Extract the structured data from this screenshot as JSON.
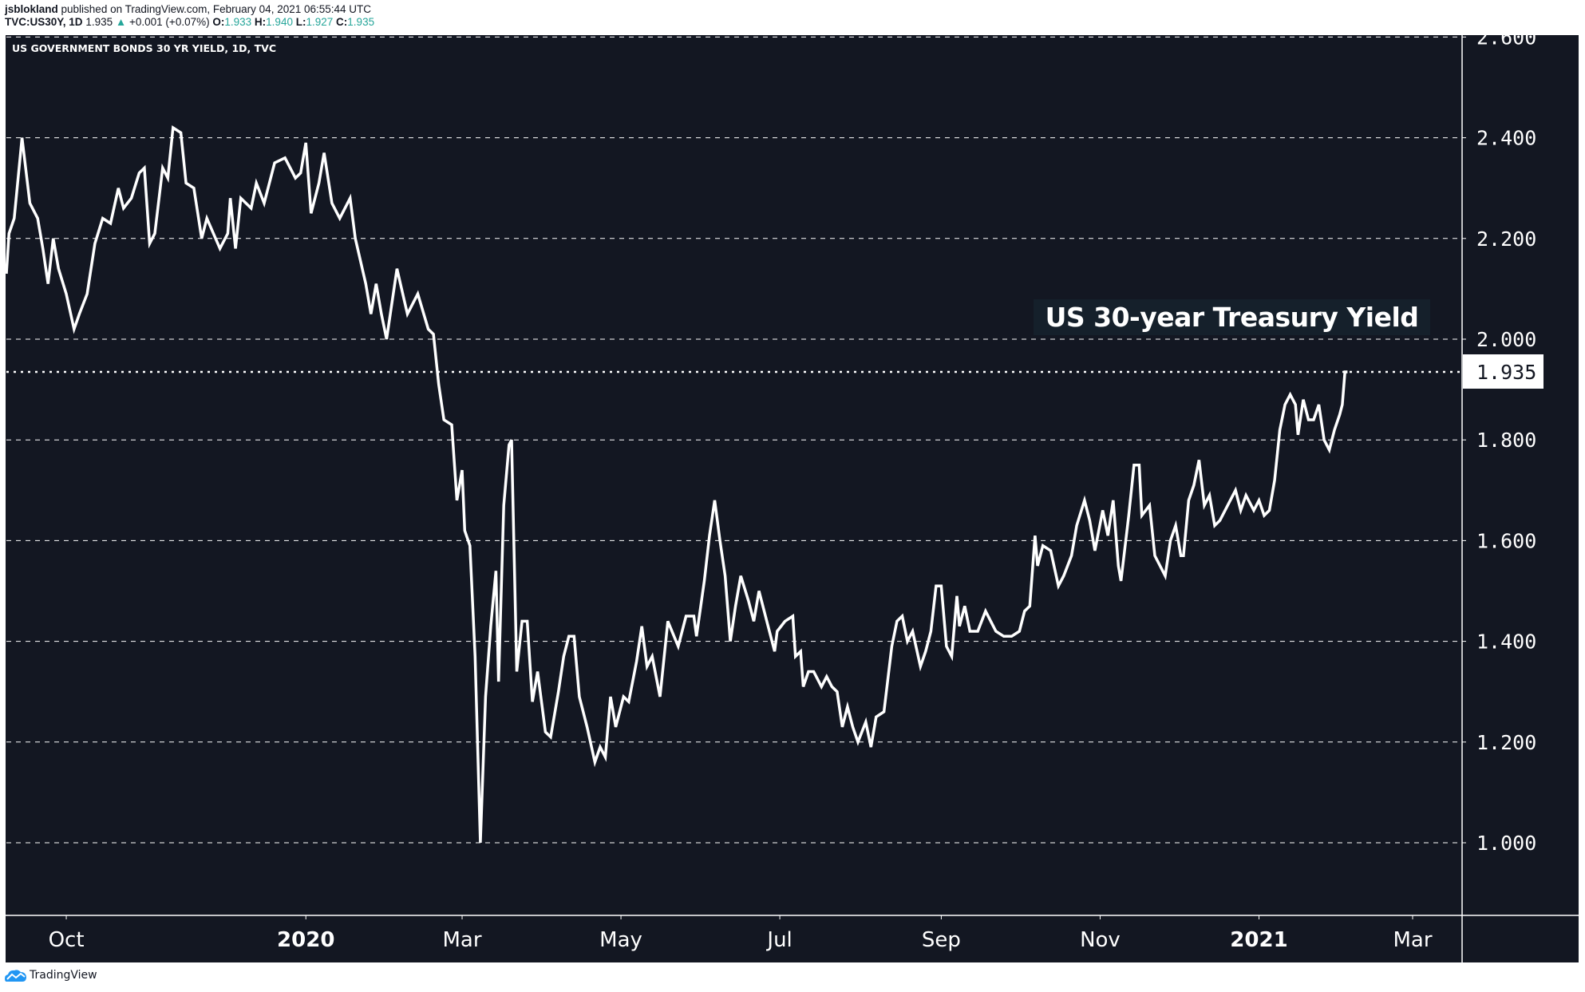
{
  "header": {
    "author": "jsblokland",
    "published": "published on TradingView.com, February 04, 2021 06:55:44 UTC",
    "symbol": "TVC:US30Y, 1D",
    "last": "1.935",
    "change": "+0.001 (+0.07%)",
    "o_label": "O:",
    "o": "1.933",
    "h_label": "H:",
    "h": "1.940",
    "l_label": "L:",
    "l": "1.927",
    "c_label": "C:",
    "c": "1.935",
    "up_icon": "triangle-up-icon"
  },
  "legend": "US GOVERNMENT BONDS 30 YR YIELD, 1D, TVC",
  "annotation": "US 30-year Treasury Yield",
  "footer": {
    "brand": "TradingView"
  },
  "colors": {
    "background": "#131722",
    "line": "#ffffff",
    "accent": "#26a69a",
    "brand": "#2196f3"
  },
  "chart_data": {
    "type": "line",
    "title": "US GOVERNMENT BONDS 30 YR YIELD, 1D, TVC",
    "xlim": [
      "2019-09-08",
      "2021-03-20"
    ],
    "ylim": [
      0.855,
      2.6
    ],
    "grid": true,
    "y_ticks": [
      "2.600",
      "2.400",
      "2.200",
      "2.000",
      "1.800",
      "1.600",
      "1.400",
      "1.200",
      "1.000"
    ],
    "x_ticks": [
      {
        "date": "2019-10-01",
        "label": "Oct",
        "bold": false
      },
      {
        "date": "2020-01-01",
        "label": "2020",
        "bold": true
      },
      {
        "date": "2020-03-01",
        "label": "Mar",
        "bold": false
      },
      {
        "date": "2020-05-01",
        "label": "May",
        "bold": false
      },
      {
        "date": "2020-07-01",
        "label": "Jul",
        "bold": false
      },
      {
        "date": "2020-09-01",
        "label": "Sep",
        "bold": false
      },
      {
        "date": "2020-11-01",
        "label": "Nov",
        "bold": false
      },
      {
        "date": "2021-01-01",
        "label": "2021",
        "bold": true
      },
      {
        "date": "2021-03-01",
        "label": "Mar",
        "bold": false
      }
    ],
    "last_value": 1.935,
    "last_value_label": "1.935",
    "points": [
      [
        "2019-09-08",
        2.13
      ],
      [
        "2019-09-09",
        2.21
      ],
      [
        "2019-09-11",
        2.24
      ],
      [
        "2019-09-14",
        2.4
      ],
      [
        "2019-09-17",
        2.27
      ],
      [
        "2019-09-20",
        2.24
      ],
      [
        "2019-09-22",
        2.18
      ],
      [
        "2019-09-24",
        2.11
      ],
      [
        "2019-09-26",
        2.2
      ],
      [
        "2019-09-28",
        2.14
      ],
      [
        "2019-10-01",
        2.09
      ],
      [
        "2019-10-04",
        2.02
      ],
      [
        "2019-10-06",
        2.05
      ],
      [
        "2019-10-09",
        2.09
      ],
      [
        "2019-10-12",
        2.19
      ],
      [
        "2019-10-15",
        2.24
      ],
      [
        "2019-10-18",
        2.23
      ],
      [
        "2019-10-21",
        2.3
      ],
      [
        "2019-10-23",
        2.26
      ],
      [
        "2019-10-26",
        2.28
      ],
      [
        "2019-10-29",
        2.33
      ],
      [
        "2019-10-31",
        2.34
      ],
      [
        "2019-11-02",
        2.19
      ],
      [
        "2019-11-04",
        2.21
      ],
      [
        "2019-11-07",
        2.34
      ],
      [
        "2019-11-09",
        2.32
      ],
      [
        "2019-11-11",
        2.42
      ],
      [
        "2019-11-14",
        2.41
      ],
      [
        "2019-11-16",
        2.31
      ],
      [
        "2019-11-19",
        2.3
      ],
      [
        "2019-11-22",
        2.2
      ],
      [
        "2019-11-24",
        2.24
      ],
      [
        "2019-11-29",
        2.18
      ],
      [
        "2019-12-02",
        2.21
      ],
      [
        "2019-12-03",
        2.28
      ],
      [
        "2019-12-05",
        2.18
      ],
      [
        "2019-12-07",
        2.28
      ],
      [
        "2019-12-11",
        2.26
      ],
      [
        "2019-12-13",
        2.31
      ],
      [
        "2019-12-16",
        2.27
      ],
      [
        "2019-12-20",
        2.35
      ],
      [
        "2019-12-24",
        2.36
      ],
      [
        "2019-12-28",
        2.32
      ],
      [
        "2019-12-30",
        2.33
      ],
      [
        "2020-01-01",
        2.39
      ],
      [
        "2020-01-03",
        2.25
      ],
      [
        "2020-01-06",
        2.31
      ],
      [
        "2020-01-08",
        2.37
      ],
      [
        "2020-01-11",
        2.27
      ],
      [
        "2020-01-14",
        2.24
      ],
      [
        "2020-01-18",
        2.28
      ],
      [
        "2020-01-20",
        2.2
      ],
      [
        "2020-01-24",
        2.11
      ],
      [
        "2020-01-26",
        2.05
      ],
      [
        "2020-01-28",
        2.11
      ],
      [
        "2020-01-30",
        2.05
      ],
      [
        "2020-02-01",
        2.0
      ],
      [
        "2020-02-05",
        2.14
      ],
      [
        "2020-02-09",
        2.05
      ],
      [
        "2020-02-13",
        2.09
      ],
      [
        "2020-02-17",
        2.02
      ],
      [
        "2020-02-19",
        2.01
      ],
      [
        "2020-02-21",
        1.91
      ],
      [
        "2020-02-23",
        1.84
      ],
      [
        "2020-02-26",
        1.83
      ],
      [
        "2020-02-28",
        1.68
      ],
      [
        "2020-03-01",
        1.74
      ],
      [
        "2020-03-02",
        1.62
      ],
      [
        "2020-03-04",
        1.59
      ],
      [
        "2020-03-06",
        1.37
      ],
      [
        "2020-03-08",
        1.0
      ],
      [
        "2020-03-10",
        1.29
      ],
      [
        "2020-03-12",
        1.43
      ],
      [
        "2020-03-14",
        1.54
      ],
      [
        "2020-03-15",
        1.32
      ],
      [
        "2020-03-17",
        1.67
      ],
      [
        "2020-03-19",
        1.79
      ],
      [
        "2020-03-20",
        1.8
      ],
      [
        "2020-03-22",
        1.34
      ],
      [
        "2020-03-24",
        1.44
      ],
      [
        "2020-03-26",
        1.44
      ],
      [
        "2020-03-28",
        1.28
      ],
      [
        "2020-03-30",
        1.34
      ],
      [
        "2020-04-02",
        1.22
      ],
      [
        "2020-04-04",
        1.21
      ],
      [
        "2020-04-07",
        1.3
      ],
      [
        "2020-04-09",
        1.37
      ],
      [
        "2020-04-11",
        1.41
      ],
      [
        "2020-04-13",
        1.41
      ],
      [
        "2020-04-15",
        1.29
      ],
      [
        "2020-04-18",
        1.23
      ],
      [
        "2020-04-21",
        1.16
      ],
      [
        "2020-04-23",
        1.19
      ],
      [
        "2020-04-25",
        1.17
      ],
      [
        "2020-04-27",
        1.29
      ],
      [
        "2020-04-29",
        1.23
      ],
      [
        "2020-05-02",
        1.29
      ],
      [
        "2020-05-04",
        1.28
      ],
      [
        "2020-05-07",
        1.36
      ],
      [
        "2020-05-09",
        1.43
      ],
      [
        "2020-05-11",
        1.35
      ],
      [
        "2020-05-13",
        1.37
      ],
      [
        "2020-05-16",
        1.29
      ],
      [
        "2020-05-19",
        1.44
      ],
      [
        "2020-05-23",
        1.39
      ],
      [
        "2020-05-26",
        1.45
      ],
      [
        "2020-05-29",
        1.45
      ],
      [
        "2020-05-30",
        1.41
      ],
      [
        "2020-06-02",
        1.52
      ],
      [
        "2020-06-04",
        1.61
      ],
      [
        "2020-06-06",
        1.68
      ],
      [
        "2020-06-08",
        1.6
      ],
      [
        "2020-06-10",
        1.53
      ],
      [
        "2020-06-12",
        1.4
      ],
      [
        "2020-06-14",
        1.47
      ],
      [
        "2020-06-16",
        1.53
      ],
      [
        "2020-06-19",
        1.48
      ],
      [
        "2020-06-21",
        1.44
      ],
      [
        "2020-06-23",
        1.5
      ],
      [
        "2020-06-26",
        1.44
      ],
      [
        "2020-06-29",
        1.38
      ],
      [
        "2020-06-30",
        1.42
      ],
      [
        "2020-07-03",
        1.44
      ],
      [
        "2020-07-06",
        1.45
      ],
      [
        "2020-07-07",
        1.37
      ],
      [
        "2020-07-09",
        1.38
      ],
      [
        "2020-07-10",
        1.31
      ],
      [
        "2020-07-12",
        1.34
      ],
      [
        "2020-07-14",
        1.34
      ],
      [
        "2020-07-17",
        1.31
      ],
      [
        "2020-07-19",
        1.33
      ],
      [
        "2020-07-21",
        1.31
      ],
      [
        "2020-07-23",
        1.3
      ],
      [
        "2020-07-25",
        1.23
      ],
      [
        "2020-07-27",
        1.27
      ],
      [
        "2020-07-29",
        1.23
      ],
      [
        "2020-07-31",
        1.2
      ],
      [
        "2020-08-03",
        1.24
      ],
      [
        "2020-08-05",
        1.19
      ],
      [
        "2020-08-07",
        1.25
      ],
      [
        "2020-08-10",
        1.26
      ],
      [
        "2020-08-13",
        1.39
      ],
      [
        "2020-08-15",
        1.44
      ],
      [
        "2020-08-17",
        1.45
      ],
      [
        "2020-08-19",
        1.4
      ],
      [
        "2020-08-21",
        1.42
      ],
      [
        "2020-08-24",
        1.35
      ],
      [
        "2020-08-26",
        1.38
      ],
      [
        "2020-08-28",
        1.42
      ],
      [
        "2020-08-30",
        1.51
      ],
      [
        "2020-09-01",
        1.51
      ],
      [
        "2020-09-03",
        1.39
      ],
      [
        "2020-09-05",
        1.37
      ],
      [
        "2020-09-07",
        1.49
      ],
      [
        "2020-09-08",
        1.43
      ],
      [
        "2020-09-10",
        1.47
      ],
      [
        "2020-09-12",
        1.42
      ],
      [
        "2020-09-15",
        1.42
      ],
      [
        "2020-09-18",
        1.46
      ],
      [
        "2020-09-20",
        1.44
      ],
      [
        "2020-09-22",
        1.42
      ],
      [
        "2020-09-25",
        1.41
      ],
      [
        "2020-09-28",
        1.41
      ],
      [
        "2020-10-01",
        1.42
      ],
      [
        "2020-10-03",
        1.46
      ],
      [
        "2020-10-05",
        1.47
      ],
      [
        "2020-10-07",
        1.61
      ],
      [
        "2020-10-08",
        1.55
      ],
      [
        "2020-10-10",
        1.59
      ],
      [
        "2020-10-13",
        1.58
      ],
      [
        "2020-10-16",
        1.51
      ],
      [
        "2020-10-18",
        1.53
      ],
      [
        "2020-10-21",
        1.57
      ],
      [
        "2020-10-23",
        1.63
      ],
      [
        "2020-10-26",
        1.68
      ],
      [
        "2020-10-28",
        1.64
      ],
      [
        "2020-10-30",
        1.58
      ],
      [
        "2020-11-02",
        1.66
      ],
      [
        "2020-11-04",
        1.61
      ],
      [
        "2020-11-06",
        1.68
      ],
      [
        "2020-11-08",
        1.55
      ],
      [
        "2020-11-09",
        1.52
      ],
      [
        "2020-11-12",
        1.65
      ],
      [
        "2020-11-14",
        1.75
      ],
      [
        "2020-11-16",
        1.75
      ],
      [
        "2020-11-17",
        1.65
      ],
      [
        "2020-11-20",
        1.67
      ],
      [
        "2020-11-22",
        1.57
      ],
      [
        "2020-11-26",
        1.53
      ],
      [
        "2020-11-28",
        1.6
      ],
      [
        "2020-11-30",
        1.63
      ],
      [
        "2020-12-02",
        1.57
      ],
      [
        "2020-12-03",
        1.57
      ],
      [
        "2020-12-05",
        1.68
      ],
      [
        "2020-12-07",
        1.71
      ],
      [
        "2020-12-09",
        1.76
      ],
      [
        "2020-12-11",
        1.67
      ],
      [
        "2020-12-13",
        1.69
      ],
      [
        "2020-12-15",
        1.63
      ],
      [
        "2020-12-17",
        1.64
      ],
      [
        "2020-12-20",
        1.67
      ],
      [
        "2020-12-23",
        1.7
      ],
      [
        "2020-12-25",
        1.66
      ],
      [
        "2020-12-27",
        1.69
      ],
      [
        "2020-12-30",
        1.66
      ],
      [
        "2021-01-01",
        1.68
      ],
      [
        "2021-01-03",
        1.65
      ],
      [
        "2021-01-05",
        1.66
      ],
      [
        "2021-01-07",
        1.72
      ],
      [
        "2021-01-09",
        1.82
      ],
      [
        "2021-01-11",
        1.87
      ],
      [
        "2021-01-13",
        1.89
      ],
      [
        "2021-01-15",
        1.87
      ],
      [
        "2021-01-16",
        1.81
      ],
      [
        "2021-01-18",
        1.88
      ],
      [
        "2021-01-20",
        1.84
      ],
      [
        "2021-01-22",
        1.84
      ],
      [
        "2021-01-24",
        1.87
      ],
      [
        "2021-01-26",
        1.8
      ],
      [
        "2021-01-28",
        1.78
      ],
      [
        "2021-01-30",
        1.82
      ],
      [
        "2021-02-01",
        1.85
      ],
      [
        "2021-02-02",
        1.87
      ],
      [
        "2021-02-03",
        1.935
      ],
      [
        "2021-02-04",
        1.935
      ]
    ]
  }
}
